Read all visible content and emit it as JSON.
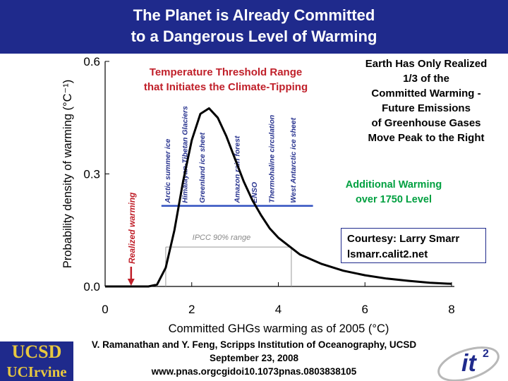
{
  "header": {
    "title_line1": "The Planet is Already Committed",
    "title_line2": "to a Dangerous Level of Warming"
  },
  "notes": {
    "threshold_line1": "Temperature Threshold Range",
    "threshold_line2": "that Initiates the Climate-Tipping",
    "realized_lines": [
      "Earth Has Only Realized",
      "1/3 of the",
      "Committed Warming -",
      "Future Emissions",
      "of Greenhouse Gases",
      "Move Peak to the Right"
    ],
    "additional_line1": "Additional Warming",
    "additional_line2": "over 1750 Level",
    "courtesy_line1": "Courtesy: Larry Smarr",
    "courtesy_line2": "lsmarr.calit2.net"
  },
  "footer": {
    "line1": "V. Ramanathan and Y. Feng, Scripps Institution of Oceanography, UCSD",
    "line2": "September 23, 2008",
    "line3": "www.pnas.orgcgidoi10.1073pnas.0803838105"
  },
  "logos": {
    "ucsd": "UCSD",
    "uci": "UCIrvine",
    "it2": "it²"
  },
  "colors": {
    "header_bg": "#1f2a8c",
    "curve": "#000000",
    "threshold": "#3050c0",
    "realized": "#c0202a",
    "ipcc": "#999999"
  },
  "chart_data": {
    "type": "line",
    "xlabel": "Committed GHGs warming as of 2005 (°C)",
    "ylabel": "Probability density of warming (°C⁻¹)",
    "xlim": [
      0,
      8
    ],
    "ylim": [
      0,
      0.6
    ],
    "xticks": [
      "0",
      "2",
      "4",
      "6",
      "8"
    ],
    "yticks": [
      "0.0",
      "0.3",
      "0.6"
    ],
    "series": [
      {
        "x": [
          0.0,
          1.0,
          1.2,
          1.4,
          1.6,
          1.8,
          2.0,
          2.2,
          2.4,
          2.6,
          2.8,
          3.0,
          3.2,
          3.4,
          3.6,
          3.8,
          4.0,
          4.5,
          5.0,
          5.5,
          6.0,
          6.5,
          7.0,
          7.5,
          8.0
        ],
        "values": [
          0.0,
          0.0,
          0.005,
          0.05,
          0.15,
          0.28,
          0.39,
          0.46,
          0.475,
          0.45,
          0.4,
          0.34,
          0.28,
          0.23,
          0.19,
          0.155,
          0.13,
          0.085,
          0.06,
          0.042,
          0.03,
          0.021,
          0.015,
          0.01,
          0.007
        ]
      }
    ],
    "realized_warming": {
      "label": "Realized warming",
      "x": 0.6
    },
    "ipcc_range": {
      "label": "IPCC 90% range",
      "from": 1.4,
      "to": 4.3,
      "y": 0.105
    },
    "threshold_range": {
      "from": 1.3,
      "to": 4.8,
      "y": 0.215
    },
    "tipping_elements": [
      {
        "label": "Arctic summer ice",
        "x": 1.5
      },
      {
        "label": "Himalayan-Tibetan Glaciers",
        "x": 1.9
      },
      {
        "label": "Greenland ice sheet",
        "x": 2.3
      },
      {
        "label": "Amazon rain forest",
        "x": 3.1
      },
      {
        "label": "ENSO",
        "x": 3.5
      },
      {
        "label": "Thermohaline circulation",
        "x": 3.9
      },
      {
        "label": "West Antarctic ice sheet",
        "x": 4.4
      }
    ]
  }
}
